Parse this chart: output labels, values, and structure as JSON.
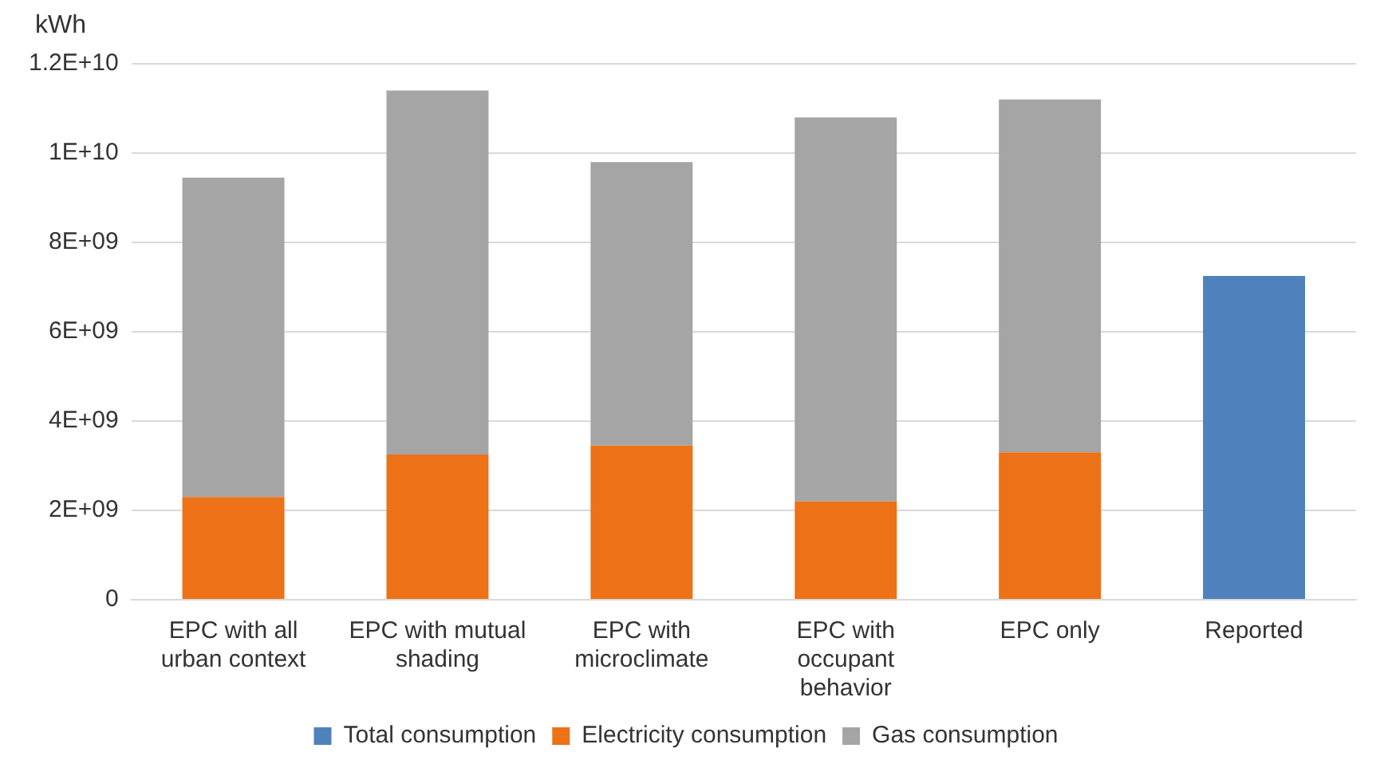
{
  "chart_data": {
    "type": "bar",
    "stacked": true,
    "ylabel": "kWh",
    "categories": [
      "EPC with all urban context",
      "EPC with mutual shading",
      "EPC with microclimate",
      "EPC with occupant behavior",
      "EPC only",
      "Reported"
    ],
    "series": [
      {
        "name": "Total consumption",
        "color": "#4f81bd",
        "values": [
          null,
          null,
          null,
          null,
          null,
          7250000000.0
        ]
      },
      {
        "name": "Electricity consumption",
        "color": "#ed7116",
        "values": [
          2300000000.0,
          3250000000.0,
          3450000000.0,
          2200000000.0,
          3300000000.0,
          null
        ]
      },
      {
        "name": "Gas consumption",
        "color": "#a5a5a5",
        "values": [
          7150000000.0,
          8150000000.0,
          6350000000.0,
          8600000000.0,
          7900000000.0,
          null
        ]
      }
    ],
    "ylim": [
      0,
      12000000000.0
    ],
    "yticks": [
      0,
      {
        "value": 2000000000.0,
        "label": "2E+09"
      },
      {
        "value": 4000000000.0,
        "label": "4E+09"
      },
      {
        "value": 6000000000.0,
        "label": "6E+09"
      },
      {
        "value": 8000000000.0,
        "label": "8E+09"
      },
      {
        "value": 10000000000.0,
        "label": "1E+10"
      },
      {
        "value": 12000000000.0,
        "label": "1.2E+10"
      }
    ],
    "grid": "y",
    "legend": "bottom"
  }
}
